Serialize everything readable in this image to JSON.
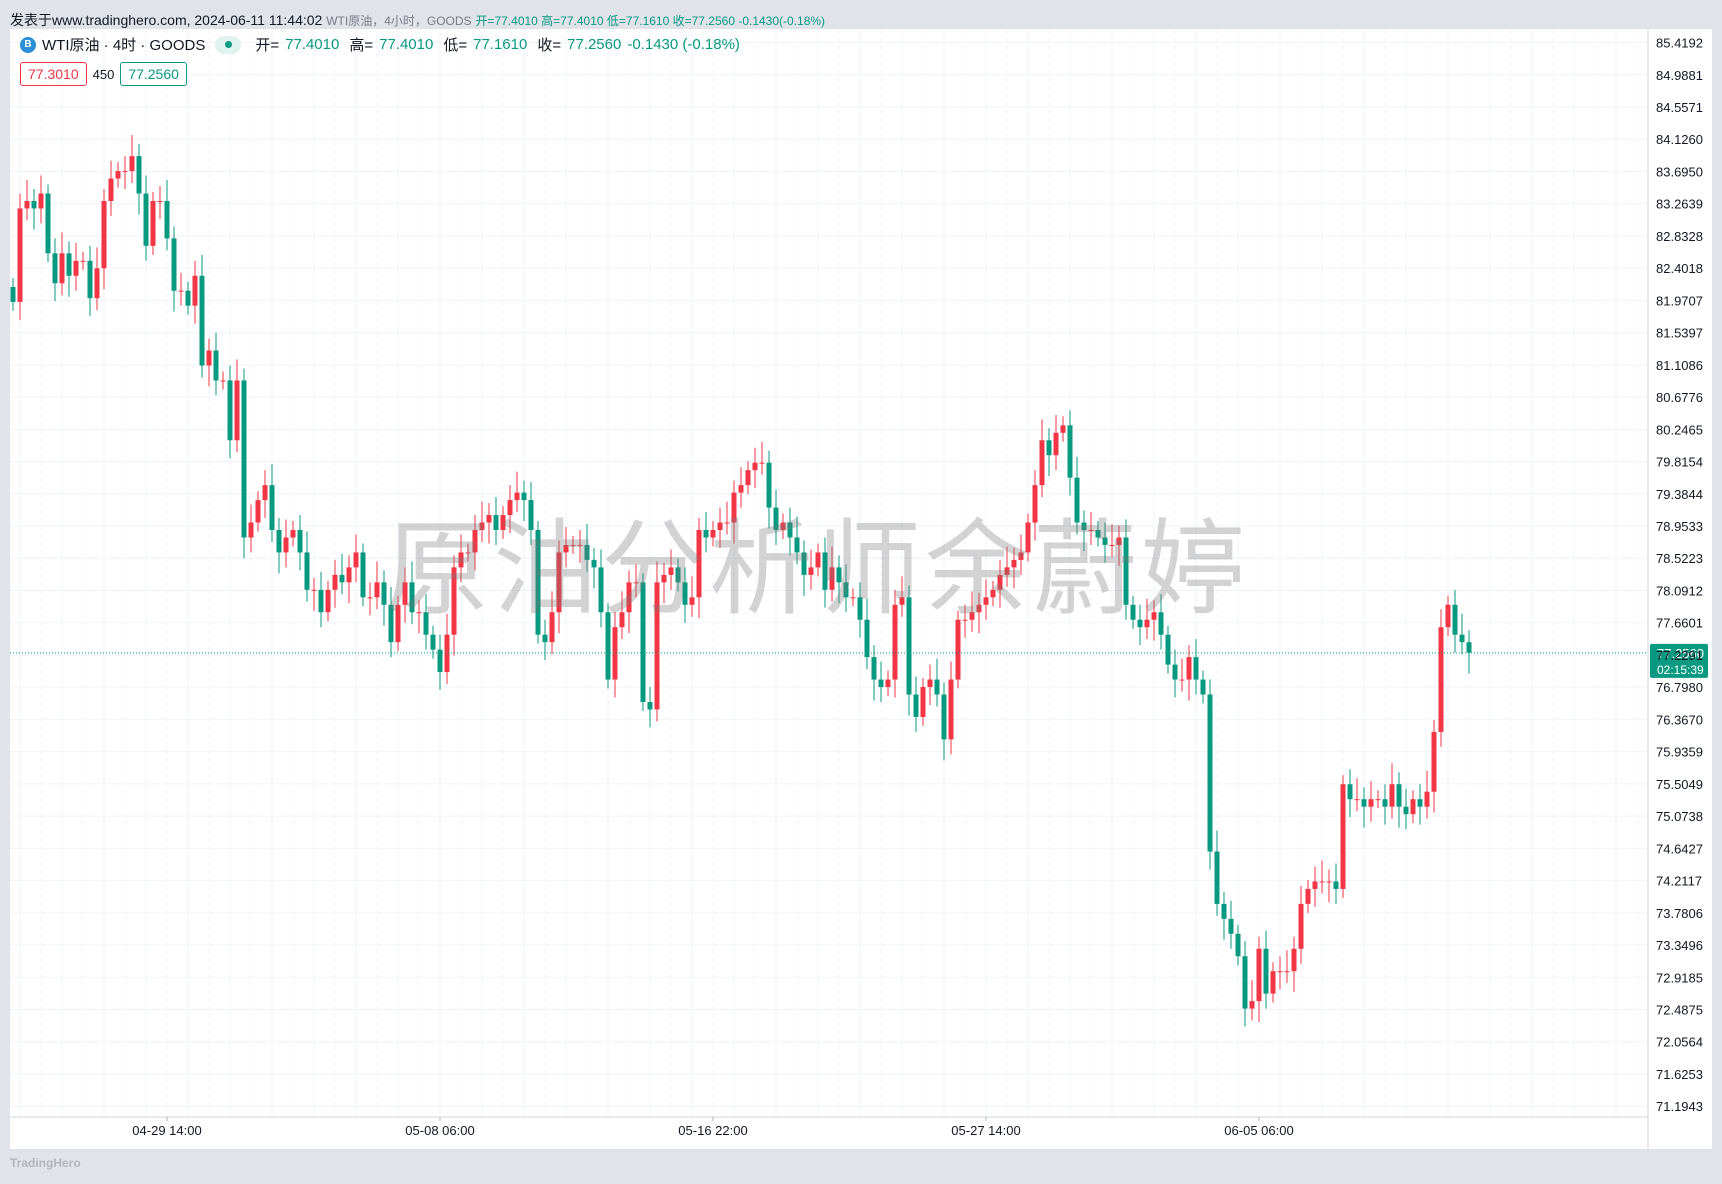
{
  "header": {
    "source": "发表于www.tradinghero.com, 2024-06-11 11:44:02",
    "desc": "WTI原油，4小时，GOODS",
    "ohlc": "开=77.4010 高=77.4010 低=77.1610 收=77.2560 -0.1430(-0.18%)"
  },
  "legend": {
    "icon_text": "B",
    "symbol": "WTI原油 · 4时 · GOODS",
    "open_label": "开=",
    "open": "77.4010",
    "high_label": "高=",
    "high": "77.4010",
    "low_label": "低=",
    "low": "77.1610",
    "close_label": "收=",
    "close": "77.2560",
    "change": "-0.1430 (-0.18%)"
  },
  "price_boxes": {
    "sell": "77.3010",
    "spread": "450",
    "buy": "77.2560"
  },
  "current": {
    "price": "77.2560",
    "countdown": "02:15:39"
  },
  "watermark": "原油分析师余蔚婷",
  "footer": "TradingHero",
  "colors": {
    "up": "#f23645",
    "down": "#089981",
    "grid": "#f0f3fa",
    "axis_text": "#131722"
  },
  "chart_data": {
    "type": "candlestick",
    "interval": "4h",
    "y_ticks": [
      "85.4192",
      "84.9881",
      "84.5571",
      "84.1260",
      "83.6950",
      "83.2639",
      "82.8328",
      "82.4018",
      "81.9707",
      "81.5397",
      "81.1086",
      "80.6776",
      "80.2465",
      "79.8154",
      "79.3844",
      "78.9533",
      "78.5223",
      "78.0912",
      "77.6601",
      "77.2291",
      "76.7980",
      "76.3670",
      "75.9359",
      "75.5049",
      "75.0738",
      "74.6427",
      "74.2117",
      "73.7806",
      "73.3496",
      "72.9185",
      "72.4875",
      "72.0564",
      "71.6253",
      "71.1943"
    ],
    "ylim": [
      71.05,
      85.6
    ],
    "x_labels": [
      {
        "label": "04-29 14:00",
        "index": 22
      },
      {
        "label": "05-08 06:00",
        "index": 61
      },
      {
        "label": "05-16 22:00",
        "index": 100
      },
      {
        "label": "05-27 14:00",
        "index": 139
      },
      {
        "label": "06-05 06:00",
        "index": 178
      }
    ],
    "last_price": 77.256,
    "closes": [
      81.95,
      83.2,
      83.3,
      83.2,
      83.4,
      82.6,
      82.2,
      82.6,
      82.3,
      82.5,
      82.5,
      82.0,
      82.4,
      83.3,
      83.6,
      83.7,
      83.7,
      83.9,
      83.4,
      82.7,
      83.3,
      83.3,
      82.8,
      82.1,
      82.1,
      81.9,
      82.3,
      81.1,
      81.3,
      80.9,
      80.9,
      80.1,
      80.9,
      78.8,
      79.0,
      79.3,
      79.5,
      78.9,
      78.6,
      78.8,
      78.9,
      78.6,
      78.1,
      78.1,
      77.8,
      78.1,
      78.3,
      78.2,
      78.4,
      78.6,
      78.0,
      78.0,
      78.2,
      77.9,
      77.4,
      77.9,
      78.2,
      77.8,
      77.8,
      77.5,
      77.3,
      77.0,
      77.5,
      78.4,
      78.6,
      78.6,
      78.9,
      79.0,
      79.1,
      78.9,
      79.1,
      79.3,
      79.4,
      79.3,
      78.9,
      77.5,
      77.4,
      77.8,
      78.6,
      78.7,
      78.7,
      78.7,
      78.5,
      78.4,
      77.8,
      76.9,
      77.6,
      77.8,
      78.2,
      78.2,
      76.6,
      76.5,
      78.2,
      78.3,
      78.4,
      78.2,
      77.9,
      78.0,
      78.9,
      78.8,
      78.9,
      79.0,
      79.0,
      79.4,
      79.5,
      79.7,
      79.8,
      79.8,
      79.2,
      78.9,
      79.0,
      78.8,
      78.6,
      78.3,
      78.4,
      78.6,
      78.1,
      78.4,
      78.2,
      78.0,
      78.0,
      77.7,
      77.2,
      76.9,
      76.8,
      76.9,
      77.9,
      78.0,
      76.7,
      76.4,
      76.8,
      76.9,
      76.7,
      76.1,
      76.9,
      77.7,
      77.7,
      77.8,
      77.9,
      78.0,
      78.1,
      78.3,
      78.4,
      78.5,
      78.6,
      79.0,
      79.5,
      80.1,
      79.9,
      80.2,
      80.3,
      79.6,
      79.0,
      78.9,
      78.9,
      78.8,
      78.7,
      78.7,
      78.8,
      77.9,
      77.7,
      77.6,
      77.7,
      77.8,
      77.5,
      77.1,
      76.9,
      76.9,
      77.2,
      76.9,
      76.7,
      74.6,
      73.9,
      73.7,
      73.5,
      73.2,
      72.5,
      72.6,
      73.3,
      72.7,
      73.0,
      73.0,
      73.0,
      73.3,
      73.9,
      74.1,
      74.2,
      74.2,
      74.2,
      74.1,
      75.5,
      75.3,
      75.3,
      75.2,
      75.3,
      75.3,
      75.2,
      75.5,
      75.2,
      75.1,
      75.3,
      75.2,
      75.4,
      76.2,
      77.6,
      77.9,
      77.5,
      77.4,
      77.26
    ]
  }
}
